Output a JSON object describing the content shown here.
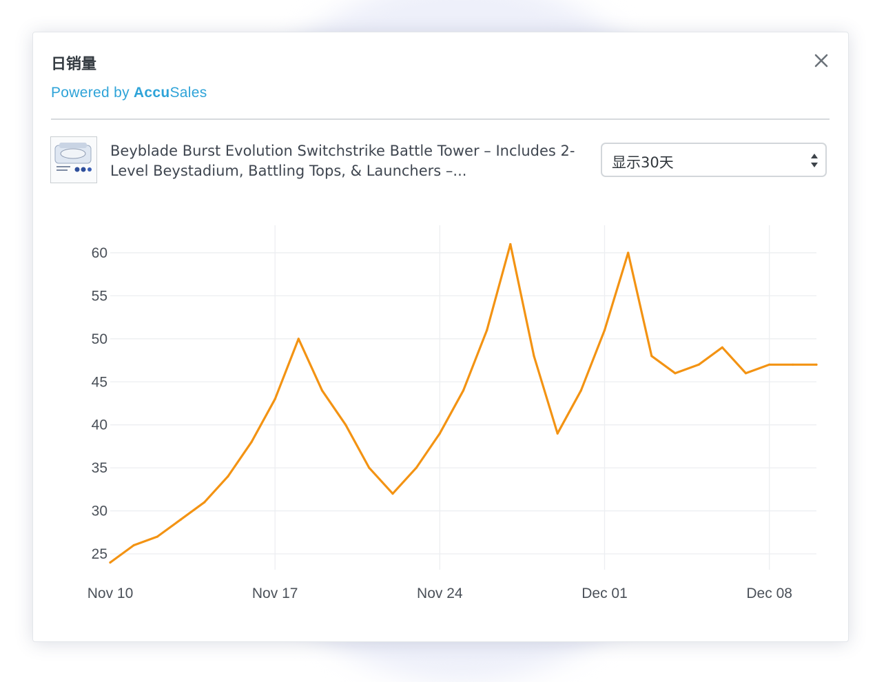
{
  "dialog": {
    "title": "日销量",
    "powered_prefix": "Powered by",
    "brand_bold": "Accu",
    "brand_light": "Sales"
  },
  "product": {
    "title": "Beyblade Burst Evolution Switchstrike Battle Tower – Includes 2-Level Beystadium, Battling Tops, & Launchers –..."
  },
  "range_select": {
    "value": "显示30天"
  },
  "chart_data": {
    "type": "line",
    "line_color": "#f39313",
    "x": [
      "2017-11-10",
      "2017-11-11",
      "2017-11-12",
      "2017-11-13",
      "2017-11-14",
      "2017-11-15",
      "2017-11-16",
      "2017-11-17",
      "2017-11-18",
      "2017-11-19",
      "2017-11-20",
      "2017-11-21",
      "2017-11-22",
      "2017-11-23",
      "2017-11-24",
      "2017-11-25",
      "2017-11-26",
      "2017-11-27",
      "2017-11-28",
      "2017-11-29",
      "2017-11-30",
      "2017-12-01",
      "2017-12-02",
      "2017-12-03",
      "2017-12-04",
      "2017-12-05",
      "2017-12-06",
      "2017-12-07",
      "2017-12-08",
      "2017-12-09",
      "2017-12-10"
    ],
    "series": [
      {
        "values": [
          24,
          26,
          27,
          29,
          31,
          34,
          38,
          43,
          50,
          44,
          40,
          35,
          32,
          35,
          39,
          44,
          51,
          61,
          48,
          39,
          44,
          51,
          60,
          48,
          46,
          47,
          49,
          46,
          47,
          47,
          47
        ]
      }
    ],
    "x_ticks": [
      "Nov 10",
      "Nov 17",
      "Nov 24",
      "Dec 01",
      "Dec 08"
    ],
    "x_tick_dates": [
      "2017-11-10",
      "2017-11-17",
      "2017-11-24",
      "2017-12-01",
      "2017-12-08"
    ],
    "y_ticks": [
      25,
      30,
      35,
      40,
      45,
      50,
      55,
      60
    ],
    "ylim": [
      23.8,
      63.2
    ],
    "xlim": [
      "2017-11-10",
      "2017-12-10"
    ],
    "grid": true
  }
}
